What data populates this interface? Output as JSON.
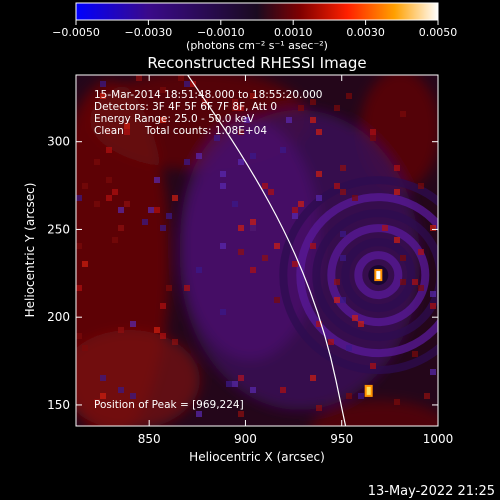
{
  "colorbar": {
    "tick_labels": [
      "−0.0050",
      "−0.0030",
      "−0.0010",
      "0.0010",
      "0.0030",
      "0.0050"
    ],
    "tick_values": [
      -0.005,
      -0.003,
      -0.001,
      0.001,
      0.003,
      0.005
    ],
    "range": [
      -0.005,
      0.005
    ],
    "units": "(photons cm⁻² s⁻¹ asec⁻²)",
    "colors": [
      "#0000ff",
      "#3a0a8a",
      "#2a0a3a",
      "#800000",
      "#ff2000",
      "#ffa000",
      "#ffffff"
    ]
  },
  "chart_data": {
    "type": "heatmap",
    "title": "Reconstructed RHESSI Image",
    "xlabel": "Heliocentric X (arcsec)",
    "ylabel": "Heliocentric Y (arcsec)",
    "xlim": [
      812,
      1000
    ],
    "ylim": [
      138,
      338
    ],
    "x_ticks": [
      850,
      900,
      950,
      1000
    ],
    "x_tick_labels": [
      "850",
      "900",
      "950",
      "1000"
    ],
    "y_ticks": [
      150,
      200,
      250,
      300
    ],
    "y_tick_labels": [
      "150",
      "200",
      "250",
      "300"
    ],
    "annotations": {
      "time": "15-Mar-2014 18:51:48.000 to 18:55:20.000",
      "detectors": "Detectors: 3F 4F 5F 6F 7F 8F, Att 0",
      "energy": "Energy Range: 25.0 - 50.0 keV",
      "method": "Clean",
      "counts": "Total counts: 1.08E+04",
      "peak": "Position of Peak = [969,224]"
    },
    "peak": [
      969,
      224
    ],
    "limb_curve": [
      [
        870,
        338
      ],
      [
        900,
        290
      ],
      [
        925,
        240
      ],
      [
        942,
        190
      ],
      [
        952,
        138
      ]
    ],
    "bright_sources": [
      [
        969,
        224
      ],
      [
        964,
        158
      ]
    ]
  },
  "footer": {
    "timestamp": "13-May-2022 21:25"
  }
}
